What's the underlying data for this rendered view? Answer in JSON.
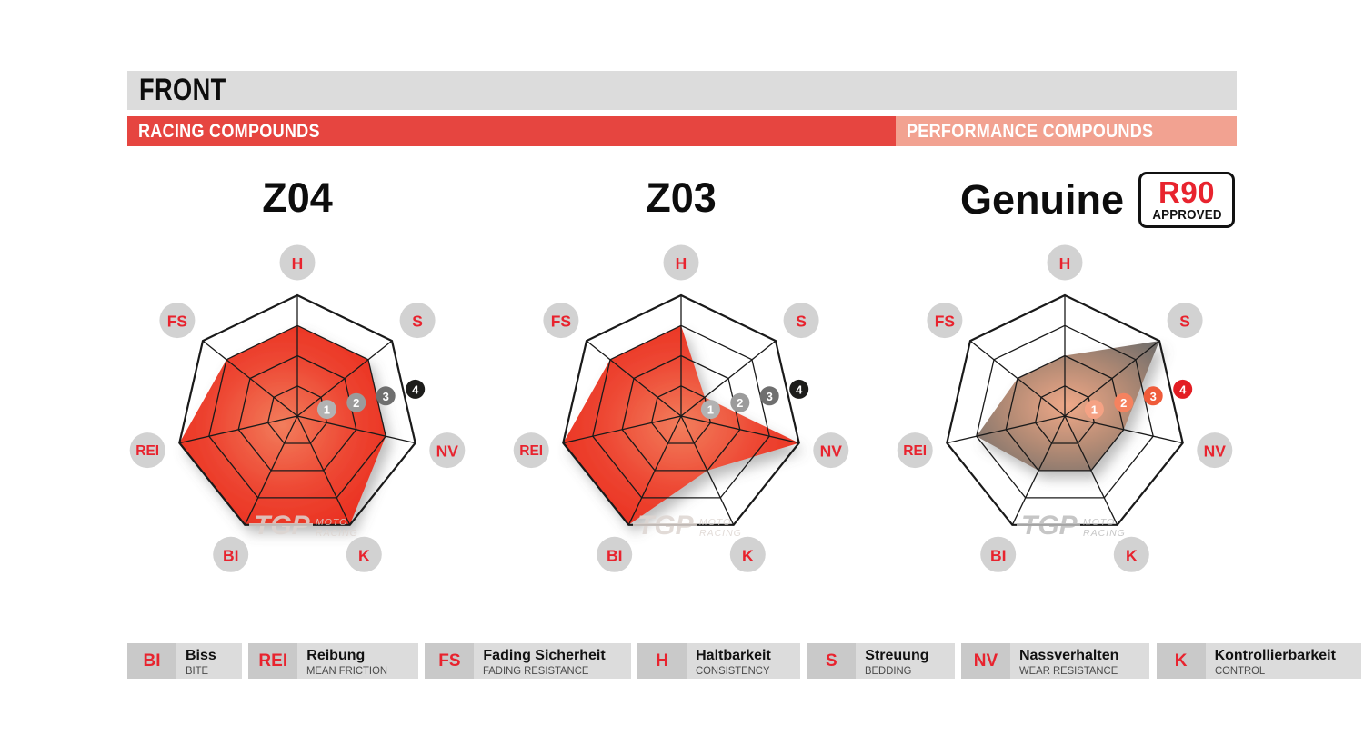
{
  "page": {
    "title_bar": "FRONT"
  },
  "bars": {
    "racing": "RACING COMPOUNDS",
    "performance": "PERFORMANCE COMPOUNDS"
  },
  "badge": {
    "line1": "R90",
    "line2": "APPROVED"
  },
  "watermark": {
    "logo": "TGP",
    "line1": "MOTO",
    "line2": "RACING"
  },
  "chart_data": [
    {
      "type": "radar",
      "title": "Z04",
      "group": "racing",
      "axes": [
        "H",
        "S",
        "NV",
        "K",
        "BI",
        "REI",
        "FS"
      ],
      "values": [
        3,
        3,
        3,
        4,
        4,
        4,
        3
      ],
      "max": 4,
      "rings": [
        1,
        2,
        3,
        4
      ],
      "tick_labels": [
        "1",
        "2",
        "3",
        "4"
      ],
      "fill": "red"
    },
    {
      "type": "radar",
      "title": "Z03",
      "group": "racing",
      "axes": [
        "H",
        "S",
        "NV",
        "K",
        "BI",
        "REI",
        "FS"
      ],
      "values": [
        3,
        1,
        4,
        2,
        4,
        4,
        3
      ],
      "max": 4,
      "rings": [
        1,
        2,
        3,
        4
      ],
      "tick_labels": [
        "1",
        "2",
        "3",
        "4"
      ],
      "fill": "red"
    },
    {
      "type": "radar",
      "title": "Genuine",
      "group": "performance",
      "badge": "R90 APPROVED",
      "axes": [
        "H",
        "S",
        "NV",
        "K",
        "BI",
        "REI",
        "FS"
      ],
      "values": [
        2,
        4,
        2,
        2,
        2,
        3,
        2
      ],
      "max": 4,
      "rings": [
        1,
        2,
        3,
        4
      ],
      "tick_labels": [
        "1",
        "2",
        "3",
        "4"
      ],
      "fill": "gray"
    }
  ],
  "legend": {
    "items": [
      {
        "abbr": "BI",
        "german": "Biss",
        "english": "BITE"
      },
      {
        "abbr": "REI",
        "german": "Reibung",
        "english": "MEAN FRICTION"
      },
      {
        "abbr": "FS",
        "german": "Fading Sicherheit",
        "english": "FADING RESISTANCE"
      },
      {
        "abbr": "H",
        "german": "Haltbarkeit",
        "english": "CONSISTENCY"
      },
      {
        "abbr": "S",
        "german": "Streuung",
        "english": "BEDDING"
      },
      {
        "abbr": "NV",
        "german": "Nassverhalten",
        "english": "WEAR RESISTANCE"
      },
      {
        "abbr": "K",
        "german": "Kontrollierbarkeit",
        "english": "CONTROL"
      }
    ]
  },
  "colors": {
    "header_bar": "#dcdcdc",
    "racing_bar": "#e64540",
    "performance_bar": "#f2a291",
    "accent_red": "#e8232e",
    "label_circle": "#d2d2d2",
    "grid_line": "#1a1a1a",
    "tick_gray": [
      "#b2b2b2",
      "#9b9b9b",
      "#6f6f6f",
      "#1d1d1b"
    ],
    "tick_red": [
      "#f5a284",
      "#f5825f",
      "#ef5b3a",
      "#e31e24"
    ],
    "red_gradient": [
      "#f27d5c",
      "#ed4632",
      "#e92619"
    ],
    "gray_gradient": [
      "#efa888",
      "#b28a74",
      "#6f6d6b"
    ]
  }
}
